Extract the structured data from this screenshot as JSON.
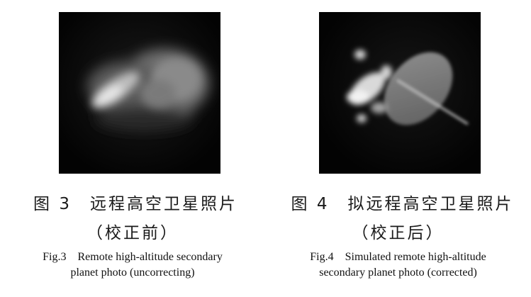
{
  "figures": [
    {
      "caption_cn_line1": "图 3　远程高空卫星照片",
      "caption_cn_line2": "（校正前）",
      "caption_en_line1": "Fig.3　Remote high-altitude secondary",
      "caption_en_line2": "planet photo (uncorrecting)"
    },
    {
      "caption_cn_line1": "图 4　拟远程高空卫星照片",
      "caption_cn_line2": "（校正后）",
      "caption_en_line1": "Fig.4　Simulated remote high-altitude",
      "caption_en_line2": "secondary planet photo (corrected)"
    }
  ]
}
